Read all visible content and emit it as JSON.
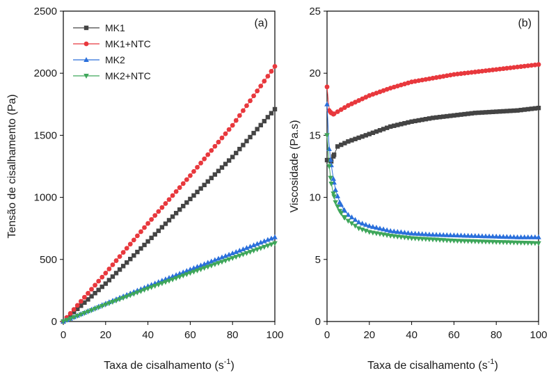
{
  "chart_data": [
    {
      "panel": "(a)",
      "type": "scatter",
      "xlabel": "Taxa de cisalhamento (s",
      "xlabel_sup": "-1",
      "xlabel_end": ")",
      "ylabel": "Tensão de cisalhamento (Pa)",
      "xlim": [
        0,
        100
      ],
      "ylim": [
        0,
        2500
      ],
      "xticks": [
        0,
        20,
        40,
        60,
        80,
        100
      ],
      "yticks": [
        0,
        500,
        1000,
        1500,
        2000,
        2500
      ],
      "legend_position": "top-left",
      "grid": false,
      "series": [
        {
          "name": "MK1",
          "color": "#444444",
          "marker": "square",
          "x": [
            0,
            20,
            40,
            60,
            80,
            100
          ],
          "y": [
            0,
            305,
            645,
            987,
            1325,
            1710
          ]
        },
        {
          "name": "MK1+NTC",
          "color": "#e8383d",
          "marker": "circle",
          "x": [
            0,
            20,
            40,
            60,
            80,
            100
          ],
          "y": [
            0,
            390,
            790,
            1175,
            1580,
            2055
          ]
        },
        {
          "name": "MK2",
          "color": "#2a6fdb",
          "marker": "triangle-up",
          "x": [
            0,
            20,
            40,
            60,
            80,
            100
          ],
          "y": [
            0,
            145,
            285,
            420,
            550,
            680
          ]
        },
        {
          "name": "MK2+NTC",
          "color": "#3ea65a",
          "marker": "triangle-down",
          "x": [
            0,
            20,
            40,
            60,
            80,
            100
          ],
          "y": [
            0,
            135,
            265,
            390,
            510,
            630
          ]
        }
      ]
    },
    {
      "panel": "(b)",
      "type": "scatter",
      "xlabel": "Taxa de cisalhamento (s",
      "xlabel_sup": "-1",
      "xlabel_end": ")",
      "ylabel": "Viscosidade (Pa.s)",
      "xlim": [
        0,
        100
      ],
      "ylim": [
        0,
        25
      ],
      "xticks": [
        0,
        20,
        40,
        60,
        80,
        100
      ],
      "yticks": [
        0,
        5,
        10,
        15,
        20,
        25
      ],
      "grid": false,
      "series": [
        {
          "name": "MK1",
          "color": "#444444",
          "marker": "square",
          "x": [
            0,
            1,
            2,
            3,
            5,
            10,
            20,
            30,
            40,
            50,
            60,
            70,
            80,
            90,
            100
          ],
          "y": [
            13.0,
            13.0,
            12.9,
            13.3,
            14.1,
            14.5,
            15.1,
            15.7,
            16.1,
            16.4,
            16.6,
            16.8,
            16.9,
            17.0,
            17.2
          ]
        },
        {
          "name": "MK1+NTC",
          "color": "#e8383d",
          "marker": "circle",
          "x": [
            0,
            1,
            2,
            3,
            5,
            10,
            20,
            30,
            40,
            50,
            60,
            70,
            80,
            90,
            100
          ],
          "y": [
            18.9,
            17.0,
            16.8,
            16.7,
            16.9,
            17.4,
            18.2,
            18.8,
            19.3,
            19.6,
            19.9,
            20.1,
            20.3,
            20.5,
            20.7
          ]
        },
        {
          "name": "MK2",
          "color": "#2a6fdb",
          "marker": "triangle-up",
          "x": [
            0,
            1,
            2,
            3,
            4,
            6,
            8,
            10,
            15,
            20,
            30,
            40,
            50,
            60,
            70,
            80,
            90,
            100
          ],
          "y": [
            17.5,
            13.9,
            12.6,
            11.5,
            10.6,
            9.6,
            9.0,
            8.6,
            8.0,
            7.7,
            7.3,
            7.1,
            7.0,
            6.95,
            6.9,
            6.85,
            6.8,
            6.8
          ]
        },
        {
          "name": "MK2+NTC",
          "color": "#3ea65a",
          "marker": "triangle-down",
          "x": [
            0,
            1,
            2,
            3,
            4,
            6,
            8,
            10,
            15,
            20,
            30,
            40,
            50,
            60,
            70,
            80,
            90,
            100
          ],
          "y": [
            15.0,
            12.5,
            11.1,
            10.3,
            9.6,
            8.9,
            8.4,
            8.1,
            7.5,
            7.2,
            6.9,
            6.7,
            6.6,
            6.5,
            6.45,
            6.4,
            6.35,
            6.3
          ]
        }
      ]
    }
  ]
}
